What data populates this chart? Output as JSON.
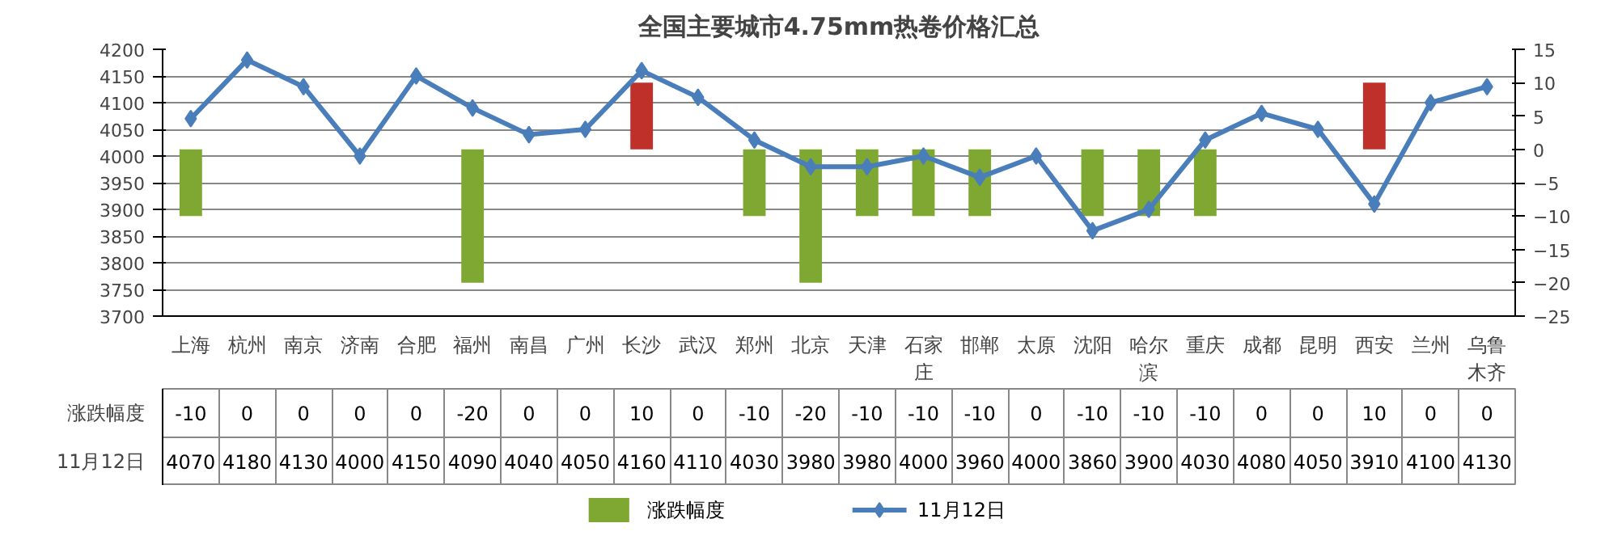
{
  "chart_data": {
    "type": "line",
    "title": "全国主要城市4.75mm热卷价格汇总",
    "categories": [
      "上海",
      "杭州",
      "南京",
      "济南",
      "合肥",
      "福州",
      "南昌",
      "广州",
      "长沙",
      "武汉",
      "郑州",
      "北京",
      "天津",
      "石家庄",
      "邯郸",
      "太原",
      "沈阳",
      "哈尔滨",
      "重庆",
      "成都",
      "昆明",
      "西安",
      "兰州",
      "乌鲁木齐"
    ],
    "series": [
      {
        "name": "涨跌幅度",
        "type": "bar",
        "axis": "y2",
        "colors": [
          "#7fa832",
          "#7fa832",
          "#7fa832",
          "#7fa832",
          "#7fa832",
          "#7fa832",
          "#7fa832",
          "#7fa832",
          "#c0302a",
          "#7fa832",
          "#7fa832",
          "#7fa832",
          "#7fa832",
          "#7fa832",
          "#7fa832",
          "#7fa832",
          "#7fa832",
          "#7fa832",
          "#7fa832",
          "#7fa832",
          "#7fa832",
          "#c0302a",
          "#7fa832",
          "#7fa832"
        ],
        "values": [
          -10,
          0,
          0,
          0,
          0,
          -20,
          0,
          0,
          10,
          0,
          -10,
          -20,
          -10,
          -10,
          -10,
          0,
          -10,
          -10,
          -10,
          0,
          0,
          10,
          0,
          0
        ]
      },
      {
        "name": "11月12日",
        "color": "#4a7ebb",
        "values": [
          4070,
          4180,
          4130,
          4000,
          4150,
          4090,
          4040,
          4050,
          4160,
          4110,
          4030,
          3980,
          3980,
          4000,
          3960,
          4000,
          3860,
          3900,
          4030,
          4080,
          4050,
          3910,
          4100,
          4130
        ]
      }
    ],
    "ylim": [
      3700,
      4200
    ],
    "yticks": [
      3700,
      3750,
      3800,
      3850,
      3900,
      3950,
      4000,
      4050,
      4100,
      4150,
      4200
    ],
    "y2lim": [
      -25,
      15
    ],
    "y2ticks": [
      -25,
      -20,
      -15,
      -10,
      -5,
      0,
      5,
      10,
      15
    ],
    "grid": "y",
    "marker": "diamond",
    "legend": "bottom",
    "data_labels": true
  }
}
